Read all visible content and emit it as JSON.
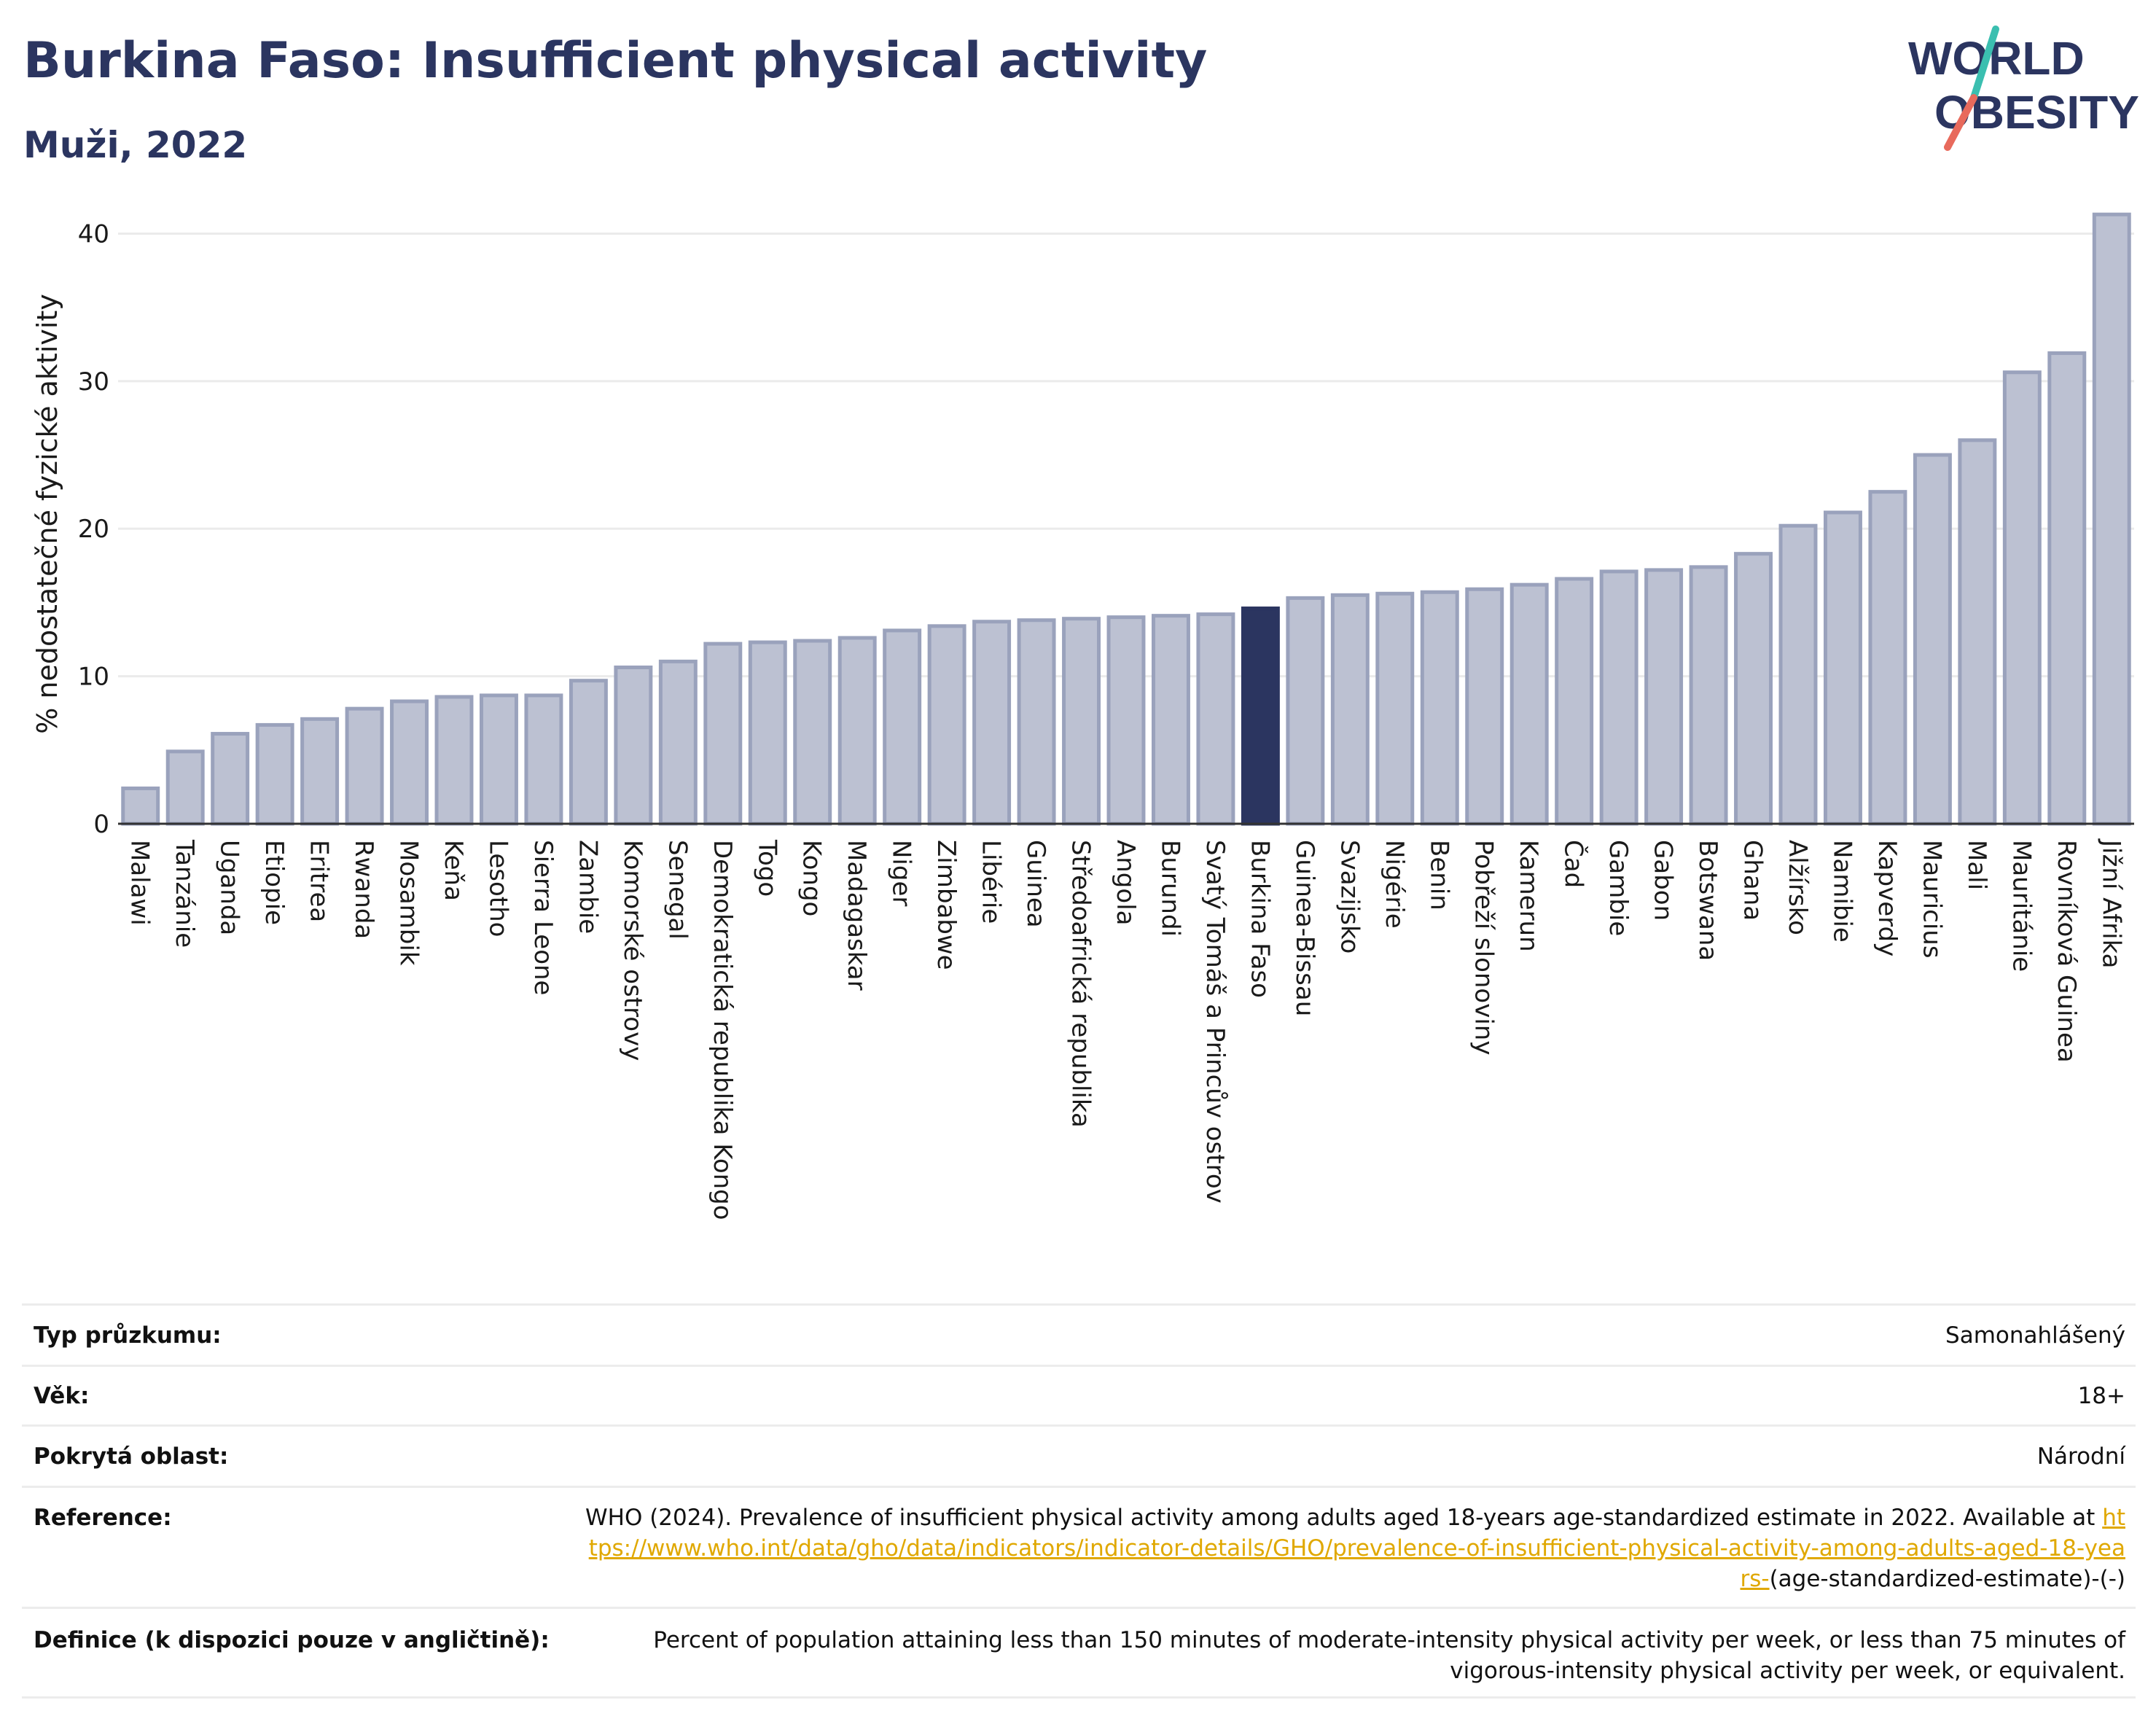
{
  "title": "Burkina Faso: Insufficient physical activity",
  "subtitle": "Muži, 2022",
  "logo": {
    "line1": "WORLD",
    "line2": "OBESITY",
    "colors": {
      "text": "#2b3560",
      "teal": "#3bbfb0",
      "coral": "#e86a5c"
    }
  },
  "colors": {
    "bar": "#bcc1d2",
    "bar_border": "#9aa2bc",
    "highlight": "#2b3560",
    "grid": "#ebebeb",
    "axis": "#333333",
    "title": "#2b3560",
    "link": "#e0a800"
  },
  "chart_data": {
    "type": "bar",
    "ylabel": "% nedostatečné fyzické aktivity",
    "ylim": [
      0,
      42
    ],
    "yticks": [
      0,
      10,
      20,
      30,
      40
    ],
    "grid": true,
    "highlight": "Burkina Faso",
    "categories": [
      "Malawi",
      "Tanzánie",
      "Uganda",
      "Etiopie",
      "Eritrea",
      "Rwanda",
      "Mosambik",
      "Keňa",
      "Lesotho",
      "Sierra Leone",
      "Zambie",
      "Komorské ostrovy",
      "Senegal",
      "Demokratická republika Kongo",
      "Togo",
      "Kongo",
      "Madagaskar",
      "Niger",
      "Zimbabwe",
      "Libérie",
      "Guinea",
      "Středoafrická republika",
      "Angola",
      "Burundi",
      "Svatý Tomáš a Princův ostrov",
      "Burkina Faso",
      "Guinea-Bissau",
      "Svazijsko",
      "Nigérie",
      "Benin",
      "Pobřeží slonoviny",
      "Kamerun",
      "Čad",
      "Gambie",
      "Gabon",
      "Botswana",
      "Ghana",
      "Alžírsko",
      "Namibie",
      "Kapverdy",
      "Mauricius",
      "Mali",
      "Mauritánie",
      "Rovníková Guinea",
      "Jižní Afrika"
    ],
    "values": [
      2.4,
      4.9,
      6.1,
      6.7,
      7.1,
      7.8,
      8.3,
      8.6,
      8.7,
      8.7,
      9.7,
      10.6,
      11.0,
      12.2,
      12.3,
      12.4,
      12.6,
      13.1,
      13.4,
      13.7,
      13.8,
      13.9,
      14.0,
      14.1,
      14.2,
      14.6,
      15.3,
      15.5,
      15.6,
      15.7,
      15.9,
      16.2,
      16.6,
      17.1,
      17.2,
      17.4,
      18.3,
      20.2,
      21.1,
      22.5,
      25.0,
      26.0,
      30.6,
      31.9,
      41.3
    ]
  },
  "info": [
    {
      "label": "Typ průzkumu:",
      "value": "Samonahlášený"
    },
    {
      "label": "Věk:",
      "value": "18+"
    },
    {
      "label": "Pokrytá oblast:",
      "value": "Národní"
    },
    {
      "label": "Reference:",
      "value_pre": "WHO (2024). Prevalence of insufficient physical activity among adults aged 18-years age-standardized estimate in 2022. Available at",
      "link": "https://www.who.int/data/gho/data/indicators/indicator-details/GHO/prevalence-of-insufficient-physical-activity-among-adults-aged-18-years-",
      "value_post": "(age-standardized-estimate)-(-)"
    },
    {
      "label": "Definice (k dispozici pouze v angličtině):",
      "value": "Percent of population attaining less than 150 minutes of moderate-intensity physical activity per week, or less than 75 minutes of vigorous-intensity physical activity per week, or equivalent."
    }
  ]
}
